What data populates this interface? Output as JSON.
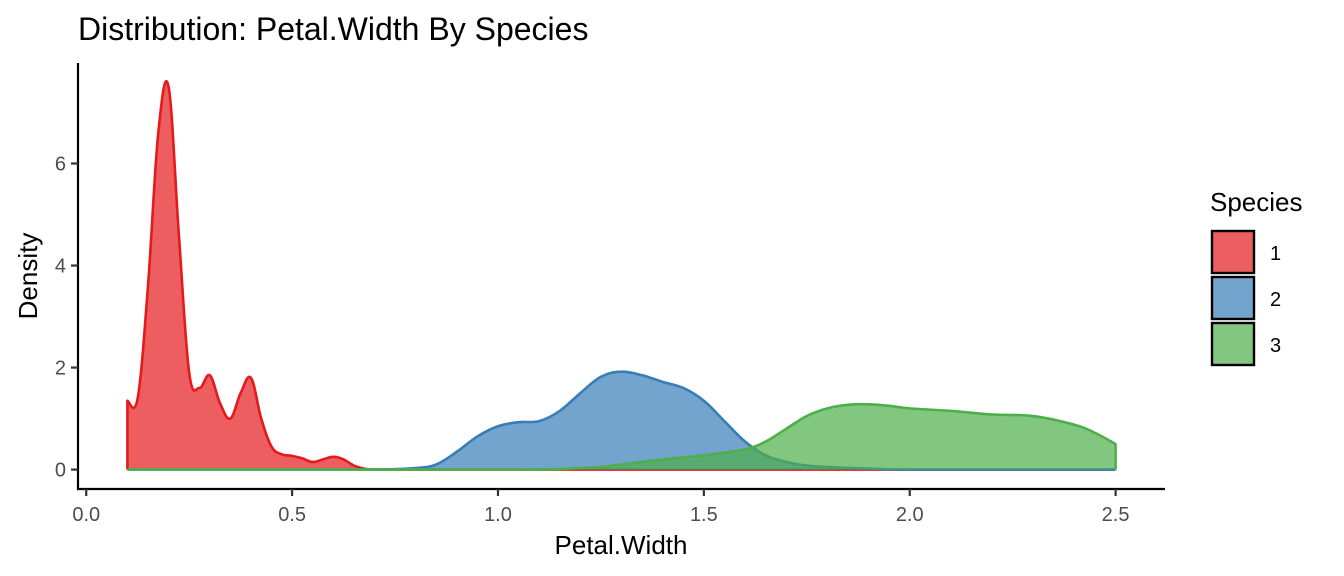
{
  "chart_data": {
    "type": "area",
    "title": "Distribution: Petal.Width By Species",
    "xlabel": "Petal.Width",
    "ylabel": "Density",
    "xlim": [
      -0.02,
      2.62
    ],
    "ylim": [
      -0.38,
      7.97
    ],
    "x_ticks": [
      0.0,
      0.5,
      1.0,
      1.5,
      2.0,
      2.5
    ],
    "x_tick_labels": [
      "0.0",
      "0.5",
      "1.0",
      "1.5",
      "2.0",
      "2.5"
    ],
    "y_ticks": [
      0,
      2,
      4,
      6
    ],
    "y_tick_labels": [
      "0",
      "2",
      "4",
      "6"
    ],
    "grid": false,
    "legend": {
      "title": "Species",
      "position": "right"
    },
    "series": [
      {
        "name": "1",
        "line_color": "#E41A1C",
        "fill_color": "#E41A1C",
        "x": [
          0.1,
          0.125,
          0.15,
          0.175,
          0.2,
          0.225,
          0.25,
          0.275,
          0.3,
          0.325,
          0.35,
          0.375,
          0.4,
          0.425,
          0.45,
          0.475,
          0.5,
          0.525,
          0.55,
          0.575,
          0.6,
          0.625,
          0.65,
          0.675,
          0.7,
          0.8,
          1.0,
          1.5,
          2.0,
          2.5
        ],
        "y": [
          1.35,
          1.4,
          3.6,
          6.6,
          7.5,
          4.6,
          1.9,
          1.6,
          1.85,
          1.3,
          1.0,
          1.5,
          1.8,
          1.0,
          0.45,
          0.3,
          0.27,
          0.22,
          0.15,
          0.2,
          0.25,
          0.2,
          0.08,
          0.02,
          0.0,
          0.0,
          0.0,
          0.0,
          0.0,
          0.0
        ]
      },
      {
        "name": "2",
        "line_color": "#377EB8",
        "fill_color": "#377EB8",
        "x": [
          0.1,
          0.5,
          0.7,
          0.8,
          0.85,
          0.9,
          0.95,
          1.0,
          1.05,
          1.1,
          1.15,
          1.2,
          1.25,
          1.3,
          1.35,
          1.4,
          1.45,
          1.5,
          1.55,
          1.6,
          1.65,
          1.7,
          1.75,
          1.8,
          1.9,
          2.0,
          2.2,
          2.5
        ],
        "y": [
          0.0,
          0.0,
          0.0,
          0.03,
          0.1,
          0.35,
          0.65,
          0.85,
          0.93,
          0.95,
          1.15,
          1.5,
          1.82,
          1.92,
          1.85,
          1.72,
          1.6,
          1.35,
          0.95,
          0.55,
          0.28,
          0.15,
          0.08,
          0.05,
          0.02,
          0.0,
          0.0,
          0.0
        ]
      },
      {
        "name": "3",
        "line_color": "#4DAF4A",
        "fill_color": "#4DAF4A",
        "x": [
          0.1,
          1.0,
          1.2,
          1.3,
          1.4,
          1.5,
          1.6,
          1.65,
          1.7,
          1.75,
          1.8,
          1.85,
          1.9,
          1.95,
          2.0,
          2.1,
          2.2,
          2.3,
          2.4,
          2.45,
          2.5
        ],
        "y": [
          0.0,
          0.0,
          0.03,
          0.1,
          0.2,
          0.28,
          0.4,
          0.55,
          0.8,
          1.05,
          1.2,
          1.27,
          1.28,
          1.25,
          1.2,
          1.15,
          1.08,
          1.05,
          0.88,
          0.72,
          0.5
        ]
      }
    ]
  }
}
